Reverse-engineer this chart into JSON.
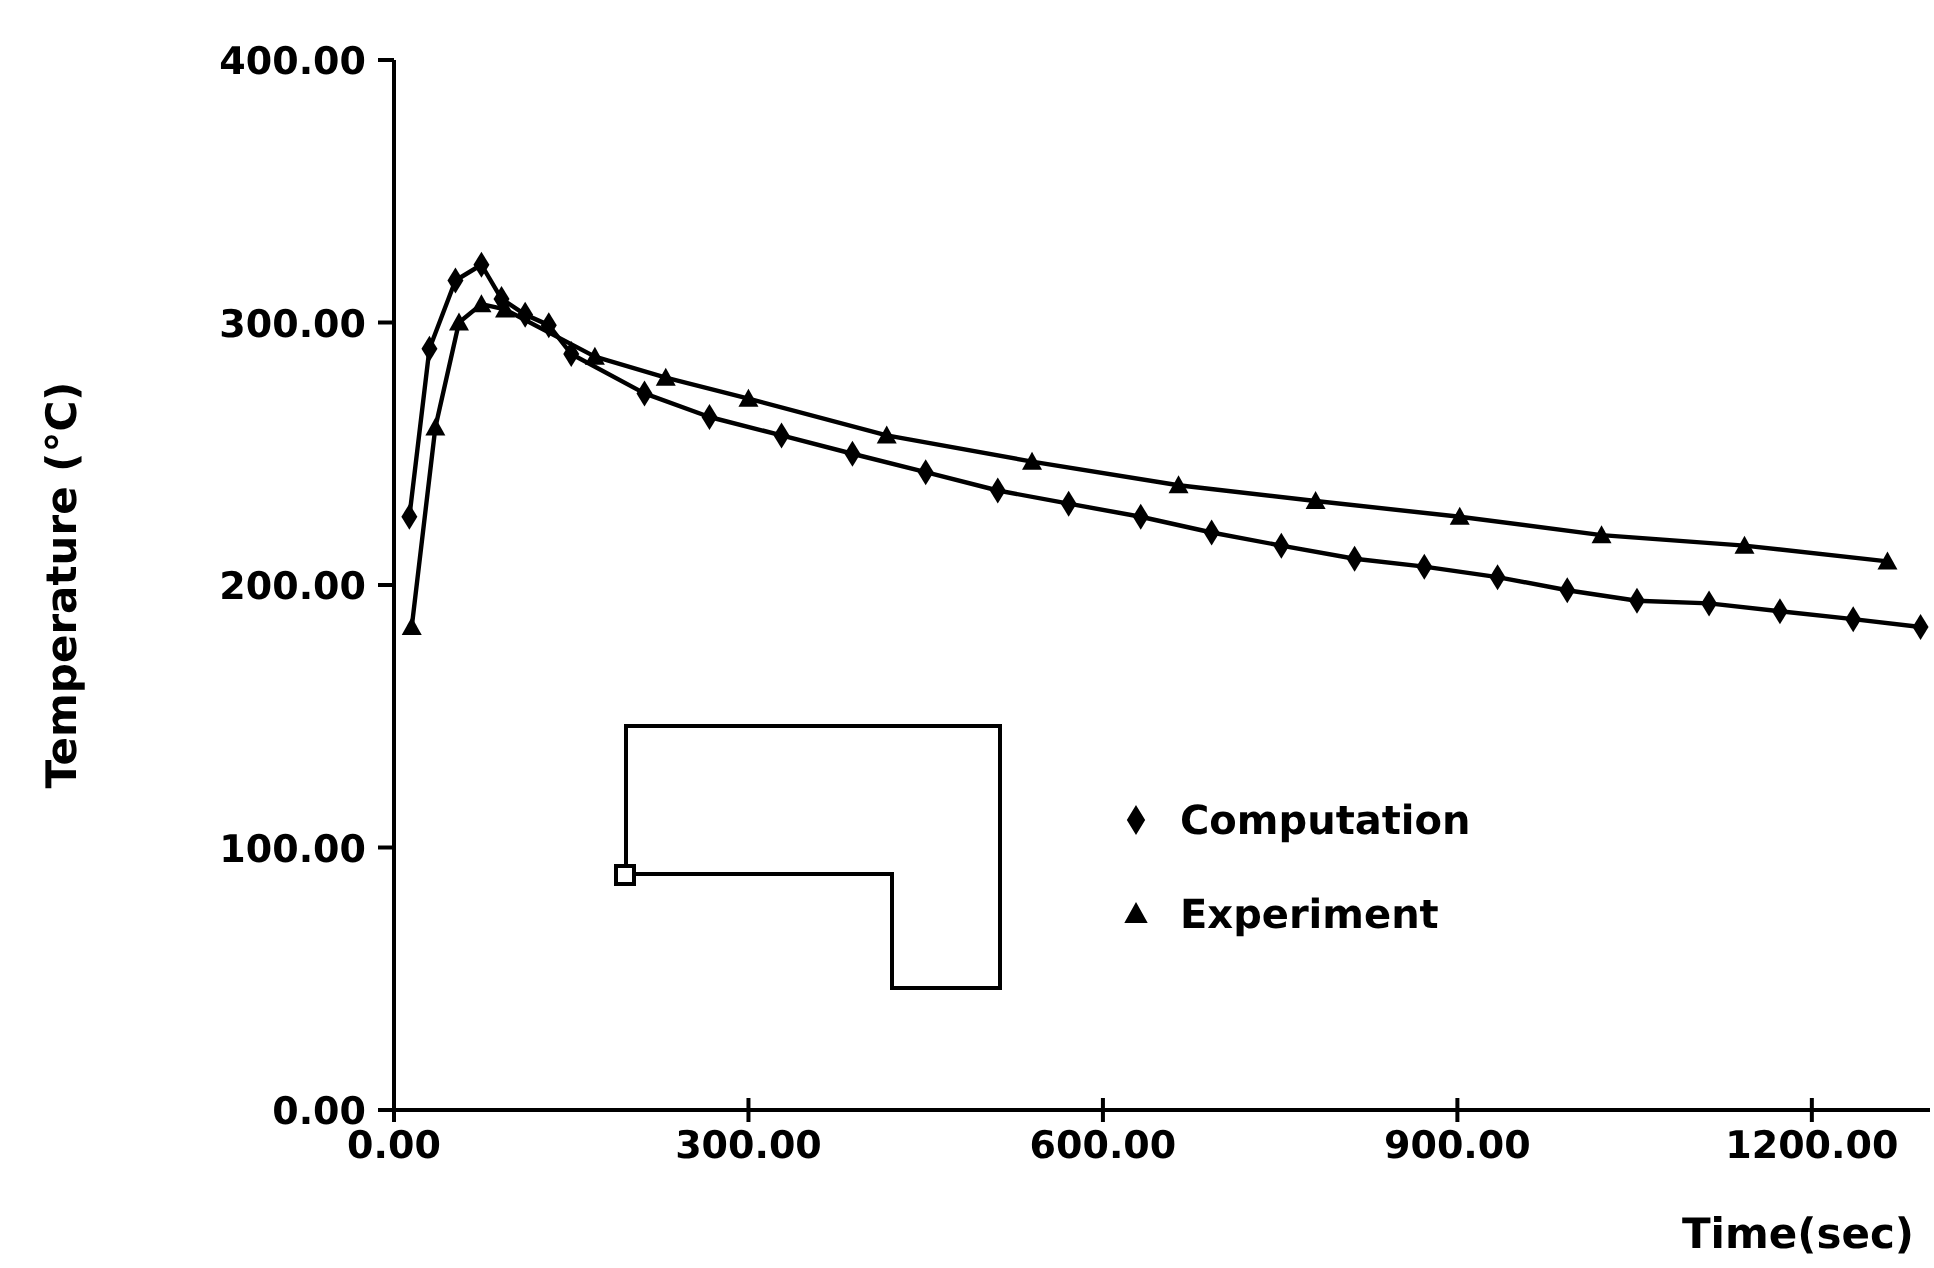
{
  "chart_data": {
    "type": "line",
    "xlabel": "Time(sec)",
    "ylabel": "Temperature (°C)",
    "xlim": [
      0,
      1300
    ],
    "ylim": [
      0,
      400
    ],
    "xticks": [
      {
        "value": 0,
        "label": "0.00"
      },
      {
        "value": 300,
        "label": "300.00"
      },
      {
        "value": 600,
        "label": "600.00"
      },
      {
        "value": 900,
        "label": "900.00"
      },
      {
        "value": 1200,
        "label": "1200.00"
      }
    ],
    "yticks": [
      {
        "value": 0,
        "label": "0.00"
      },
      {
        "value": 100,
        "label": "100.00"
      },
      {
        "value": 200,
        "label": "200.00"
      },
      {
        "value": 300,
        "label": "300.00"
      },
      {
        "value": 400,
        "label": "400.00"
      }
    ],
    "grid": false,
    "legend": "bottom right",
    "line_style": "solid",
    "series": [
      {
        "name": "Computation",
        "color": "#000000",
        "marker": "diamond",
        "x": [
          13,
          30,
          52,
          74,
          91,
          111,
          131,
          150,
          212,
          267,
          328,
          388,
          450,
          511,
          571,
          632,
          692,
          751,
          813,
          872,
          934,
          993,
          1052,
          1113,
          1173,
          1235,
          1292
        ],
        "values": [
          226,
          290,
          316,
          322,
          309,
          303,
          299,
          288,
          273,
          264,
          257,
          250,
          243,
          236,
          231,
          226,
          220,
          215,
          210,
          207,
          203,
          198,
          194,
          193,
          190,
          187,
          184
        ]
      },
      {
        "name": "Experiment",
        "color": "#000000",
        "marker": "triangle",
        "x": [
          15,
          35,
          55,
          74,
          94,
          170,
          230,
          300,
          417,
          540,
          664,
          780,
          902,
          1022,
          1143,
          1264
        ],
        "values": [
          184,
          260,
          300,
          307,
          305,
          287,
          279,
          271,
          257,
          247,
          238,
          232,
          226,
          219,
          215,
          209
        ]
      }
    ]
  }
}
